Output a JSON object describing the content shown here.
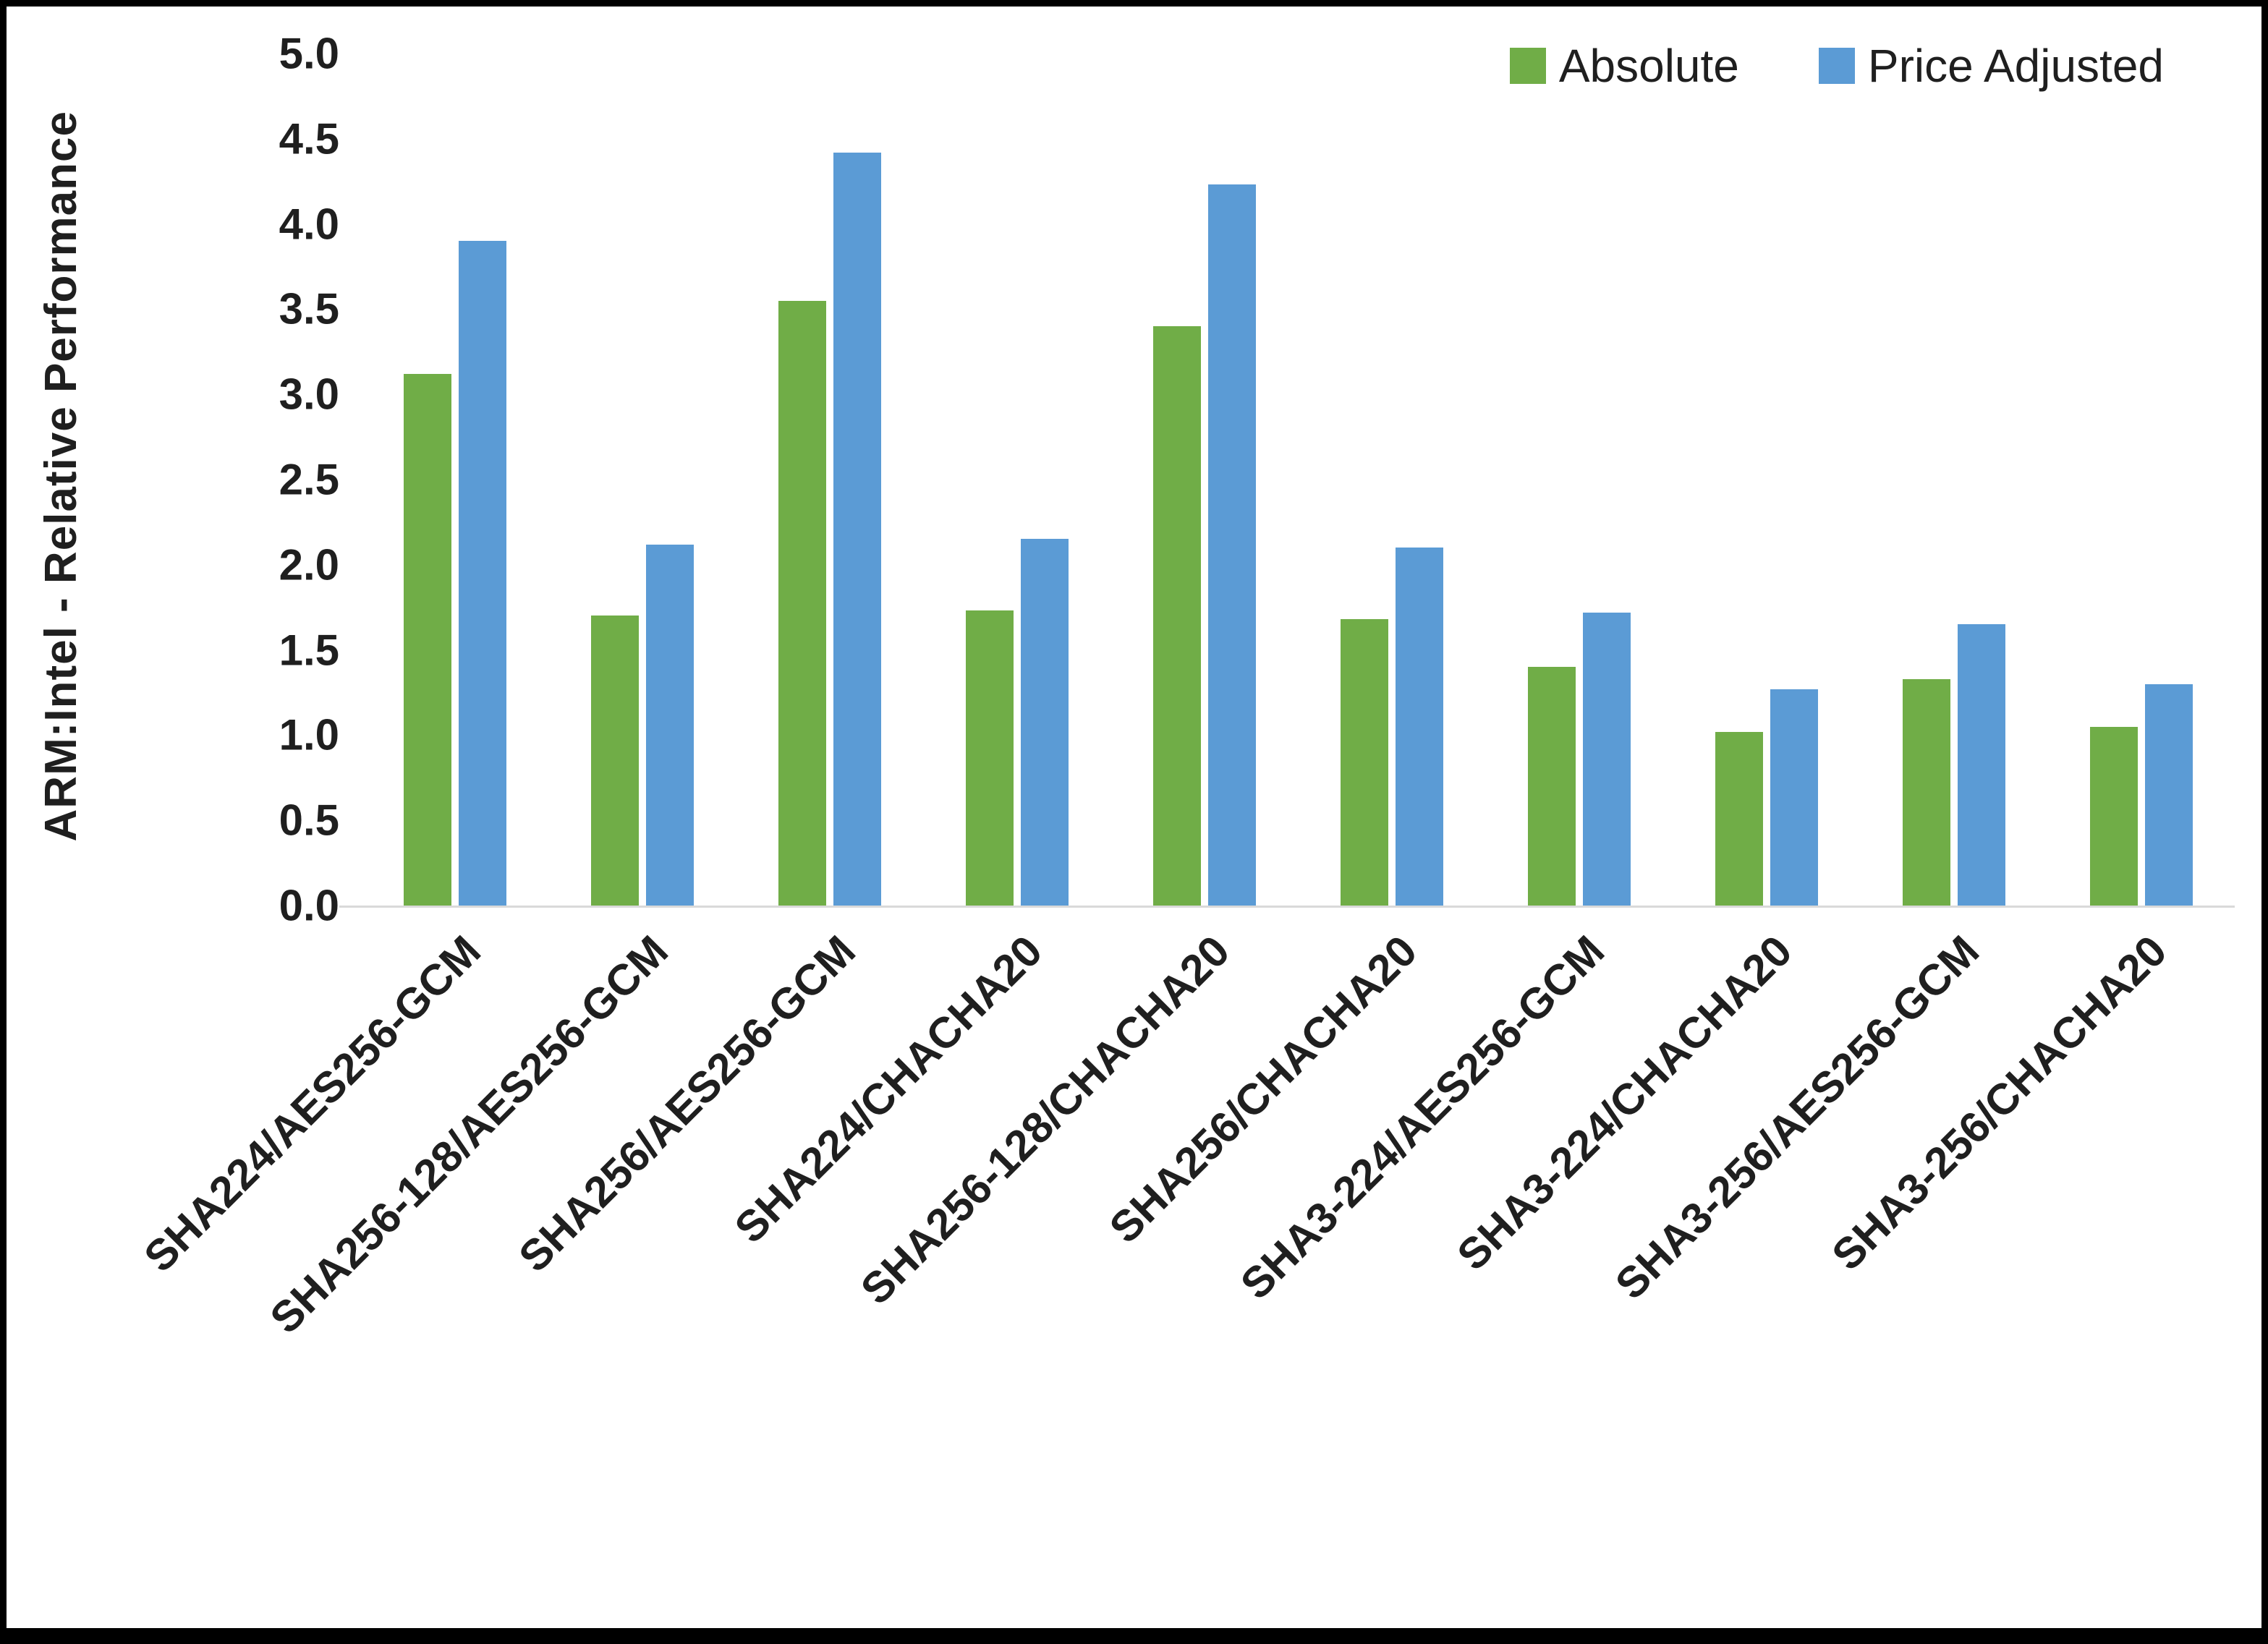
{
  "chart_data": {
    "type": "bar",
    "title": "",
    "ylabel": "ARM:Intel - Relative Performance",
    "xlabel": "",
    "ylim": [
      0,
      5
    ],
    "ytick_step": 0.5,
    "grid": false,
    "legend_position": "top-right",
    "categories": [
      "SHA224/AES256-GCM",
      "SHA256-128/AES256-GCM",
      "SHA256/AES256-GCM",
      "SHA224/CHACHA20",
      "SHA256-128/CHACHA20",
      "SHA256/CHACHA20",
      "SHA3-224/AES256-GCM",
      "SHA3-224/CHACHA20",
      "SHA3-256/AES256-GCM",
      "SHA3-256/CHACHA20"
    ],
    "series": [
      {
        "name": "Absolute",
        "color": "#70AD47",
        "values": [
          3.12,
          1.7,
          3.55,
          1.73,
          3.4,
          1.68,
          1.4,
          1.02,
          1.33,
          1.05
        ]
      },
      {
        "name": "Price Adjusted",
        "color": "#5B9BD5",
        "values": [
          3.9,
          2.12,
          4.42,
          2.15,
          4.23,
          2.1,
          1.72,
          1.27,
          1.65,
          1.3
        ]
      }
    ]
  }
}
